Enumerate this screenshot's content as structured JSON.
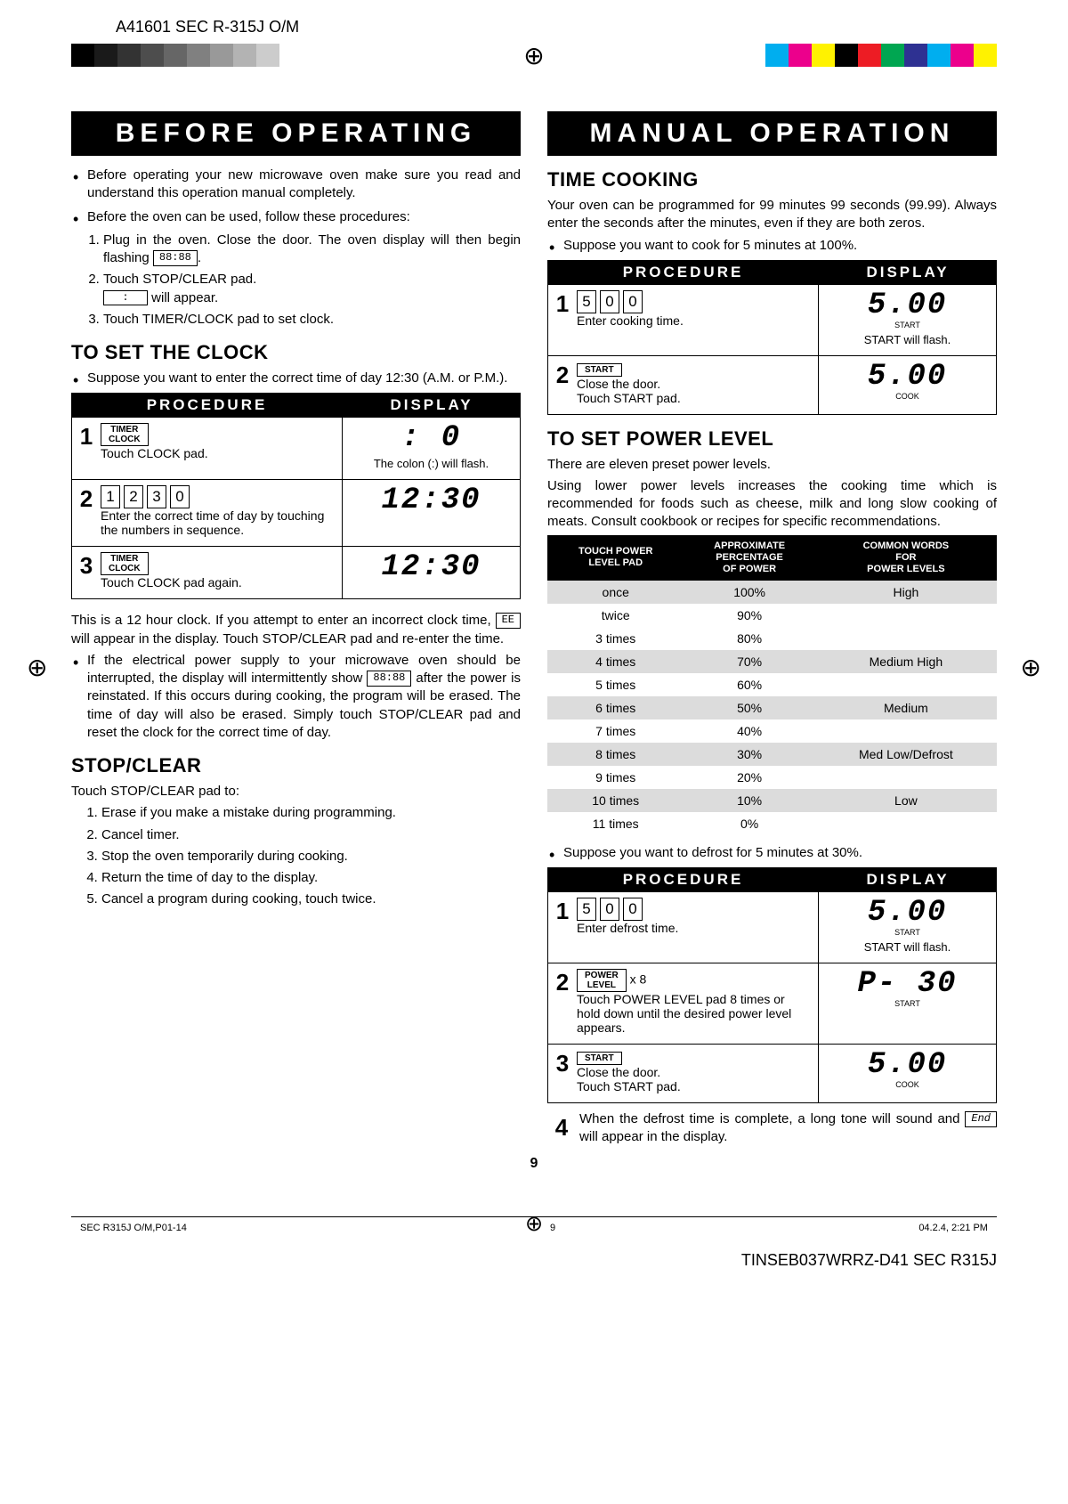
{
  "header_code": "A41601 SEC R-315J O/M",
  "regbar_left": [
    "#000000",
    "#1a1a1a",
    "#333333",
    "#4d4d4d",
    "#666666",
    "#808080",
    "#999999",
    "#b3b3b3",
    "#cccccc",
    "#ffffff"
  ],
  "regbar_right": [
    "#00aeef",
    "#ec008c",
    "#fff200",
    "#000000",
    "#ed1c24",
    "#00a651",
    "#2e3192",
    "#00aeef",
    "#ec008c",
    "#fff200"
  ],
  "left": {
    "banner": "BEFORE OPERATING",
    "intro_bullets": [
      "Before operating your new microwave oven make sure you read and understand this operation manual completely.",
      "Before the oven can be used, follow these procedures:"
    ],
    "intro_steps": [
      "Plug in the oven. Close the door. The oven display will then begin flashing",
      "Touch STOP/CLEAR pad.",
      "Touch TIMER/CLOCK pad to set clock."
    ],
    "intro_flash_box": "88:88",
    "intro_colon_box": ":",
    "intro_colon_after": "will appear.",
    "clock_title": "TO SET THE CLOCK",
    "clock_intro": "Suppose you want to enter the correct time of day 12:30 (A.M. or P.M.).",
    "proc_hdr_left": "PROCEDURE",
    "proc_hdr_right": "DISPLAY",
    "clock_rows": [
      {
        "n": "1",
        "button": "TIMER\nCLOCK",
        "text": "Touch CLOCK pad.",
        "disp": ":  0",
        "sub": "The colon (:) will flash."
      },
      {
        "n": "2",
        "digits": [
          "1",
          "2",
          "3",
          "0"
        ],
        "text": "Enter the correct time of day by touching the numbers in sequence.",
        "disp": "12:30"
      },
      {
        "n": "3",
        "button": "TIMER\nCLOCK",
        "text": "Touch CLOCK pad again.",
        "disp": "12:30"
      }
    ],
    "clock_note1a": "This is a 12 hour clock. If you attempt to enter an incorrect clock time,",
    "clock_note1_box": "EE",
    "clock_note1b": "will appear in the display. Touch STOP/CLEAR pad and re-enter the time.",
    "clock_note2a": "If the electrical power supply to your microwave oven should be interrupted, the display will intermittently show",
    "clock_note2_box": "88:88",
    "clock_note2b": "after the power is reinstated. If this occurs during cooking, the program will be erased. The time of day will also be erased. Simply touch STOP/CLEAR pad and reset the clock for the correct time of day.",
    "stop_title": "STOP/CLEAR",
    "stop_intro": "Touch STOP/CLEAR pad to:",
    "stop_items": [
      "Erase if you make a mistake during programming.",
      "Cancel timer.",
      "Stop the oven temporarily during cooking.",
      "Return the time of day to the display.",
      "Cancel a program during cooking, touch twice."
    ]
  },
  "right": {
    "banner": "MANUAL OPERATION",
    "time_title": "TIME COOKING",
    "time_intro": "Your oven can be programmed for 99 minutes 99 seconds (99.99). Always enter the seconds after the minutes, even if they are both zeros.",
    "time_suppose": "Suppose you want to cook for 5 minutes at 100%.",
    "time_rows": [
      {
        "n": "1",
        "digits": [
          "5",
          "0",
          "0"
        ],
        "text": "Enter cooking time.",
        "disp": "5.00",
        "sub": "START will flash.",
        "badge": "START"
      },
      {
        "n": "2",
        "button": "START",
        "text": "Close the door.\nTouch START pad.",
        "disp": "5.00",
        "badge": "COOK"
      }
    ],
    "power_title": "TO SET POWER LEVEL",
    "power_intro1": "There are eleven preset power levels.",
    "power_intro2": "Using lower power levels increases the cooking time which is recommended for foods such as cheese, milk and long slow cooking of meats. Consult cookbook or recipes for specific recommendations.",
    "power_headers": [
      "TOUCH POWER\nLEVEL PAD",
      "APPROXIMATE\nPERCENTAGE\nOF POWER",
      "COMMON WORDS\nFOR\nPOWER LEVELS"
    ],
    "power_rows": [
      {
        "touch": "once",
        "pct": "100%",
        "word": "High",
        "shade": true
      },
      {
        "touch": "twice",
        "pct": "90%",
        "word": "",
        "shade": false
      },
      {
        "touch": "3 times",
        "pct": "80%",
        "word": "",
        "shade": false
      },
      {
        "touch": "4 times",
        "pct": "70%",
        "word": "Medium High",
        "shade": true
      },
      {
        "touch": "5 times",
        "pct": "60%",
        "word": "",
        "shade": false
      },
      {
        "touch": "6 times",
        "pct": "50%",
        "word": "Medium",
        "shade": true
      },
      {
        "touch": "7 times",
        "pct": "40%",
        "word": "",
        "shade": false
      },
      {
        "touch": "8 times",
        "pct": "30%",
        "word": "Med Low/Defrost",
        "shade": true
      },
      {
        "touch": "9 times",
        "pct": "20%",
        "word": "",
        "shade": false
      },
      {
        "touch": "10 times",
        "pct": "10%",
        "word": "Low",
        "shade": true
      },
      {
        "touch": "11 times",
        "pct": "0%",
        "word": "",
        "shade": false
      }
    ],
    "defrost_suppose": "Suppose you want to defrost for 5 minutes at 30%.",
    "defrost_rows": [
      {
        "n": "1",
        "digits": [
          "5",
          "0",
          "0"
        ],
        "text": "Enter defrost time.",
        "disp": "5.00",
        "sub": "START will flash.",
        "badge": "START"
      },
      {
        "n": "2",
        "button": "POWER\nLEVEL",
        "button_after": " x 8",
        "text": "Touch POWER LEVEL pad 8 times or hold down until the desired power level appears.",
        "disp": "P- 30",
        "badge": "START"
      },
      {
        "n": "3",
        "button": "START",
        "text": "Close the door.\nTouch START pad.",
        "disp": "5.00",
        "badge": "COOK"
      }
    ],
    "defrost_4a": "When the defrost time is complete, a long tone will sound and",
    "defrost_4_box": "End",
    "defrost_4b": "will appear in the display.",
    "defrost_4_num": "4"
  },
  "page_num": "9",
  "footer_left": "SEC R315J O/M,P01-14",
  "footer_mid": "9",
  "footer_right": "04.2.4, 2:21 PM",
  "footer_code": "TINSEB037WRRZ-D41 SEC R315J"
}
